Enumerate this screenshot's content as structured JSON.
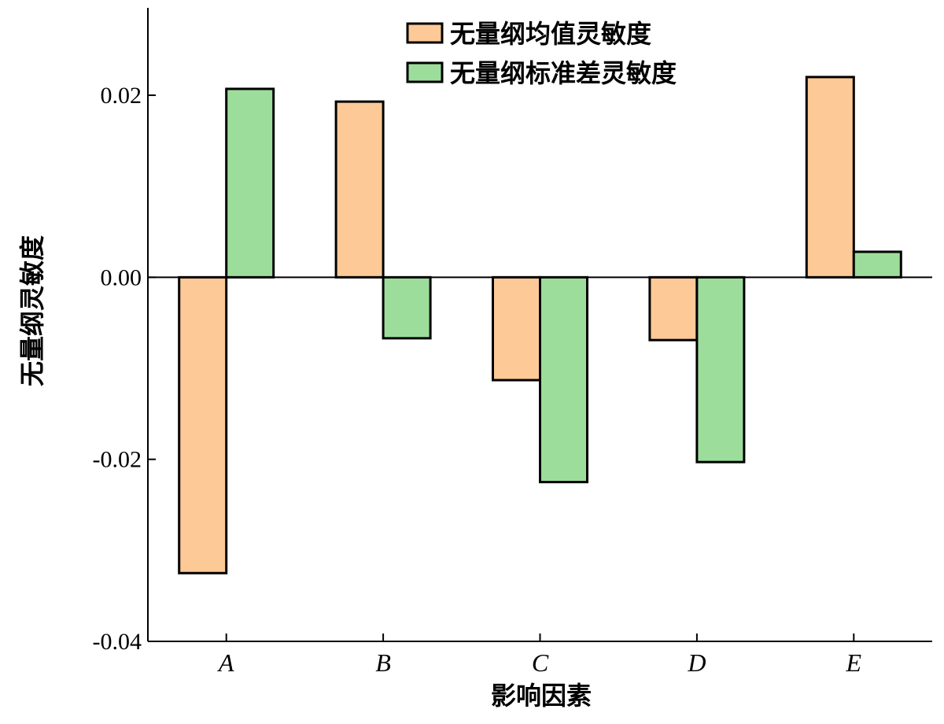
{
  "chart_data": {
    "type": "bar",
    "title": "",
    "xlabel": "影响因素",
    "ylabel": "无量纲灵敏度",
    "categories": [
      "A",
      "B",
      "C",
      "D",
      "E"
    ],
    "series": [
      {
        "name": "无量纲均值灵敏度",
        "color": "#fcc997",
        "values": [
          -0.0325,
          0.0193,
          -0.0113,
          -0.0069,
          0.022
        ]
      },
      {
        "name": "无量纲标准差灵敏度",
        "color": "#9ddd9b",
        "values": [
          0.0207,
          -0.0067,
          -0.0225,
          -0.0203,
          0.0028
        ]
      }
    ],
    "ylim": [
      -0.04,
      0.0296
    ],
    "yticks": [
      -0.04,
      -0.02,
      0.0,
      0.02
    ],
    "ytick_labels": [
      "-0.04",
      "-0.02",
      "0.00",
      "0.02"
    ],
    "legend_position": "top-right",
    "grid": false
  }
}
